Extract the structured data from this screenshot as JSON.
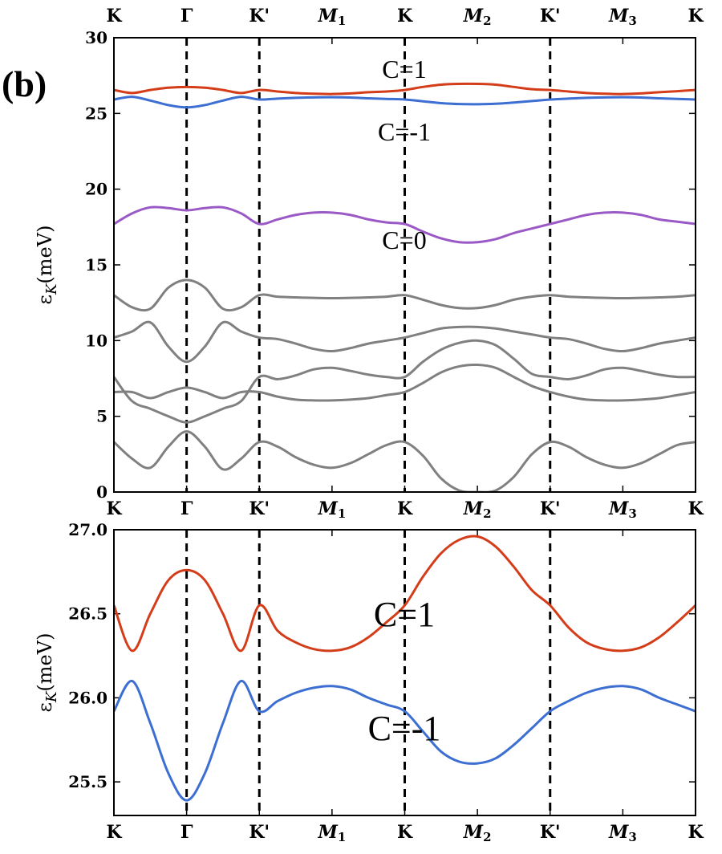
{
  "panel_label": "(b)",
  "colors": {
    "c_plus": "#d43d1a",
    "c_minus": "#3c6fd1",
    "c_zero": "#9b59c6",
    "remote": "#808080"
  },
  "chart_data": [
    {
      "type": "line",
      "ylabel": "εK(meV)",
      "ylim": [
        0,
        30
      ],
      "yticks": [
        0,
        5,
        10,
        15,
        20,
        25,
        30
      ],
      "path_labels": [
        "K",
        "Γ",
        "K'",
        "M1",
        "K",
        "M2",
        "K'",
        "M3",
        "K"
      ],
      "path_positions": [
        0,
        1,
        2,
        3,
        4,
        5,
        6,
        7,
        8
      ],
      "x": [
        0,
        0.25,
        0.5,
        0.75,
        1,
        1.25,
        1.5,
        1.75,
        2,
        2.25,
        2.5,
        2.75,
        3,
        3.25,
        3.5,
        3.75,
        4,
        4.25,
        4.5,
        4.75,
        5,
        5.25,
        5.5,
        5.75,
        6,
        6.25,
        6.5,
        6.75,
        7,
        7.25,
        7.5,
        7.75,
        8
      ],
      "series": [
        {
          "name": "C=1",
          "color_key": "c_plus",
          "values": [
            26.55,
            26.35,
            26.55,
            26.7,
            26.75,
            26.7,
            26.55,
            26.35,
            26.55,
            26.45,
            26.35,
            26.3,
            26.28,
            26.32,
            26.4,
            26.45,
            26.55,
            26.75,
            26.9,
            26.95,
            26.95,
            26.9,
            26.75,
            26.6,
            26.55,
            26.45,
            26.35,
            26.3,
            26.28,
            26.32,
            26.4,
            26.47,
            26.55
          ]
        },
        {
          "name": "C=-1",
          "color_key": "c_minus",
          "values": [
            25.92,
            26.1,
            25.85,
            25.55,
            25.4,
            25.55,
            25.85,
            26.1,
            25.92,
            25.98,
            26.03,
            26.06,
            26.07,
            26.05,
            26.0,
            25.96,
            25.92,
            25.8,
            25.68,
            25.62,
            25.61,
            25.64,
            25.72,
            25.82,
            25.92,
            25.98,
            26.03,
            26.06,
            26.07,
            26.05,
            26.0,
            25.96,
            25.92
          ]
        },
        {
          "name": "C=0",
          "color_key": "c_zero",
          "values": [
            17.7,
            18.4,
            18.8,
            18.75,
            18.6,
            18.75,
            18.8,
            18.4,
            17.7,
            18.0,
            18.3,
            18.45,
            18.45,
            18.3,
            18.0,
            17.8,
            17.7,
            17.2,
            16.75,
            16.5,
            16.5,
            16.7,
            17.1,
            17.4,
            17.7,
            18.0,
            18.3,
            18.45,
            18.45,
            18.3,
            18.0,
            17.85,
            17.7
          ]
        },
        {
          "name": "",
          "color_key": "remote",
          "values": [
            13.0,
            12.2,
            12.1,
            13.5,
            14.0,
            13.5,
            12.1,
            12.2,
            13.0,
            12.9,
            12.85,
            12.82,
            12.8,
            12.82,
            12.85,
            12.9,
            13.0,
            12.7,
            12.35,
            12.15,
            12.15,
            12.35,
            12.7,
            12.9,
            13.0,
            12.9,
            12.85,
            12.82,
            12.8,
            12.82,
            12.85,
            12.9,
            13.0
          ]
        },
        {
          "name": "",
          "color_key": "remote",
          "values": [
            10.2,
            10.6,
            11.2,
            9.6,
            8.6,
            9.6,
            11.2,
            10.6,
            10.2,
            10.1,
            9.8,
            9.45,
            9.3,
            9.5,
            9.8,
            10.0,
            10.2,
            10.5,
            10.8,
            10.9,
            10.9,
            10.8,
            10.6,
            10.4,
            10.2,
            10.1,
            9.8,
            9.45,
            9.3,
            9.5,
            9.8,
            10.0,
            10.2
          ]
        },
        {
          "name": "",
          "color_key": "remote",
          "values": [
            7.6,
            6.0,
            5.5,
            5.0,
            4.6,
            5.0,
            5.5,
            6.0,
            7.6,
            7.45,
            7.7,
            8.1,
            8.2,
            8.0,
            7.75,
            7.6,
            7.6,
            8.6,
            9.4,
            9.85,
            10.0,
            9.7,
            8.8,
            7.8,
            7.6,
            7.45,
            7.7,
            8.1,
            8.2,
            8.0,
            7.75,
            7.6,
            7.6
          ]
        },
        {
          "name": "",
          "color_key": "remote",
          "values": [
            6.6,
            6.6,
            6.2,
            6.6,
            6.9,
            6.6,
            6.2,
            6.6,
            6.6,
            6.3,
            6.1,
            6.05,
            6.05,
            6.1,
            6.2,
            6.4,
            6.6,
            7.2,
            7.9,
            8.3,
            8.4,
            8.2,
            7.6,
            7.0,
            6.6,
            6.3,
            6.1,
            6.05,
            6.05,
            6.1,
            6.2,
            6.4,
            6.6
          ]
        },
        {
          "name": "",
          "color_key": "remote",
          "values": [
            3.3,
            2.2,
            1.6,
            3.0,
            4.0,
            3.0,
            1.5,
            2.2,
            3.3,
            3.0,
            2.3,
            1.8,
            1.6,
            1.9,
            2.5,
            3.1,
            3.3,
            2.4,
            0.9,
            0.1,
            0.0,
            0.1,
            1.0,
            2.5,
            3.3,
            3.0,
            2.3,
            1.8,
            1.6,
            1.9,
            2.5,
            3.1,
            3.3
          ]
        }
      ],
      "annotations": [
        "C=1",
        "C=-1",
        "C=0"
      ]
    },
    {
      "type": "line",
      "ylabel": "εK(meV)",
      "ylim": [
        25.3,
        27.0
      ],
      "yticks": [
        "25.5",
        "26.0",
        "26.5",
        "27.0"
      ],
      "path_labels": [
        "K",
        "Γ",
        "K'",
        "M1",
        "K",
        "M2",
        "K'",
        "M3",
        "K"
      ],
      "path_positions": [
        0,
        1,
        2,
        3,
        4,
        5,
        6,
        7,
        8
      ],
      "x": [
        0,
        0.25,
        0.5,
        0.75,
        1,
        1.25,
        1.5,
        1.75,
        2,
        2.25,
        2.5,
        2.75,
        3,
        3.25,
        3.5,
        3.75,
        4,
        4.25,
        4.5,
        4.75,
        5,
        5.25,
        5.5,
        5.75,
        6,
        6.25,
        6.5,
        6.75,
        7,
        7.25,
        7.5,
        7.75,
        8
      ],
      "series": [
        {
          "name": "C=1",
          "color_key": "c_plus",
          "values": [
            26.55,
            26.28,
            26.5,
            26.7,
            26.76,
            26.7,
            26.5,
            26.28,
            26.55,
            26.4,
            26.33,
            26.29,
            26.28,
            26.3,
            26.36,
            26.45,
            26.55,
            26.72,
            26.86,
            26.94,
            26.96,
            26.9,
            26.78,
            26.64,
            26.55,
            26.42,
            26.33,
            26.29,
            26.28,
            26.3,
            26.36,
            26.45,
            26.55
          ]
        },
        {
          "name": "C=-1",
          "color_key": "c_minus",
          "values": [
            25.92,
            26.1,
            25.85,
            25.55,
            25.39,
            25.55,
            25.85,
            26.1,
            25.92,
            25.98,
            26.03,
            26.06,
            26.07,
            26.05,
            26.0,
            25.96,
            25.92,
            25.8,
            25.68,
            25.62,
            25.61,
            25.64,
            25.72,
            25.82,
            25.92,
            25.98,
            26.03,
            26.06,
            26.07,
            26.05,
            26.0,
            25.96,
            25.92
          ]
        }
      ],
      "annotations": [
        "C=1",
        "C=-1"
      ]
    }
  ]
}
